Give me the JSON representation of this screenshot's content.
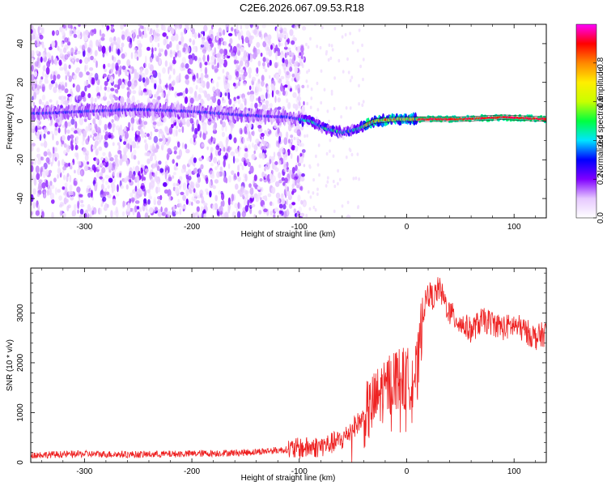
{
  "title": "C2E6.2026.067.09.53.R18",
  "chart_data": [
    {
      "type": "heatmap",
      "id": "spectrogram",
      "xlabel": "Height of straight line (km)",
      "ylabel": "Frequency (Hz)",
      "xlim": [
        -350,
        130
      ],
      "ylim": [
        -50,
        50
      ],
      "xticks": [
        -300,
        -200,
        -100,
        0,
        100
      ],
      "yticks": [
        -40,
        -20,
        0,
        20,
        40
      ],
      "colorbar": {
        "label": "Normalized spectral amplitude",
        "range": [
          0.0,
          1.0
        ],
        "ticks": [
          0.0,
          0.2,
          0.4,
          0.6,
          0.8
        ],
        "tick_labels": [
          "0.0",
          "0.2",
          "0.4",
          "0.6",
          "0.8"
        ],
        "colors": [
          "#ffffff",
          "#e6c8ff",
          "#8000ff",
          "#0000ff",
          "#00e5ff",
          "#00ff40",
          "#c8ff00",
          "#ffee00",
          "#ff8800",
          "#ff0000",
          "#ff00ff"
        ]
      },
      "signal_track": [
        {
          "x": -340,
          "y": 4
        },
        {
          "x": -300,
          "y": 5
        },
        {
          "x": -250,
          "y": 6
        },
        {
          "x": -200,
          "y": 5
        },
        {
          "x": -150,
          "y": 3
        },
        {
          "x": -110,
          "y": 2
        },
        {
          "x": -90,
          "y": 0
        },
        {
          "x": -75,
          "y": -4
        },
        {
          "x": -60,
          "y": -6
        },
        {
          "x": -45,
          "y": -4
        },
        {
          "x": -30,
          "y": 0
        },
        {
          "x": -10,
          "y": 1
        },
        {
          "x": 10,
          "y": 1
        },
        {
          "x": 50,
          "y": 1
        },
        {
          "x": 90,
          "y": 2
        },
        {
          "x": 130,
          "y": 1
        }
      ]
    },
    {
      "type": "line",
      "id": "snr",
      "xlabel": "Height of straight line (km)",
      "ylabel": "SNR (10 * v/v)",
      "xlim": [
        -350,
        130
      ],
      "ylim": [
        0,
        3900
      ],
      "xticks": [
        -300,
        -200,
        -100,
        0,
        100
      ],
      "yticks": [
        0,
        1000,
        2000,
        3000
      ],
      "color": "#ee2222",
      "series": [
        {
          "name": "SNR",
          "x": [
            -350,
            -300,
            -250,
            -200,
            -150,
            -110,
            -80,
            -60,
            -50,
            -40,
            -30,
            -20,
            -10,
            0,
            10,
            15,
            20,
            25,
            30,
            40,
            50,
            60,
            70,
            80,
            90,
            100,
            110,
            120,
            130
          ],
          "y": [
            150,
            170,
            160,
            175,
            200,
            260,
            320,
            450,
            700,
            900,
            1200,
            1500,
            1700,
            1650,
            1800,
            3000,
            3400,
            3300,
            3500,
            3000,
            2800,
            2650,
            2850,
            2800,
            2700,
            2750,
            2650,
            2500,
            2600
          ]
        }
      ]
    }
  ]
}
